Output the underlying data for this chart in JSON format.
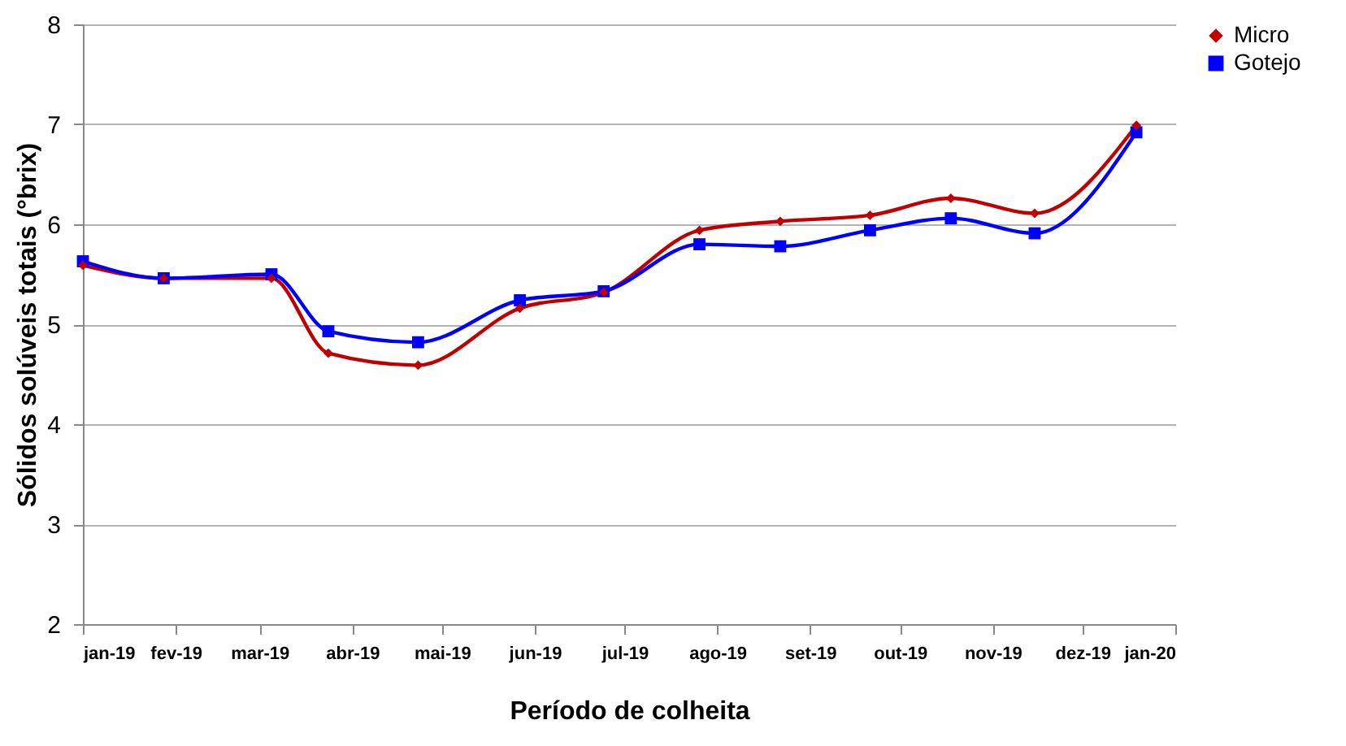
{
  "chart_data": {
    "type": "line",
    "xlabel": "Período de colheita",
    "ylabel": "Sólidos solúveis totais (°brix)",
    "x": [
      "2019-01-01",
      "2019-01-28",
      "2019-03-05",
      "2019-03-24",
      "2019-04-23",
      "2019-05-27",
      "2019-06-24",
      "2019-07-26",
      "2019-08-22",
      "2019-09-21",
      "2019-10-18",
      "2019-11-15",
      "2019-12-19"
    ],
    "series": [
      {
        "name": "Micro",
        "color": "#c00000",
        "marker": "diamond",
        "values": [
          5.59,
          5.46,
          5.46,
          4.71,
          4.59,
          5.16,
          5.32,
          5.94,
          6.03,
          6.09,
          6.26,
          6.11,
          6.99
        ]
      },
      {
        "name": "Gotejo",
        "color": "#0000ff",
        "marker": "square",
        "values": [
          5.63,
          5.46,
          5.5,
          4.93,
          4.82,
          5.24,
          5.33,
          5.8,
          5.78,
          5.94,
          6.06,
          5.91,
          6.92
        ]
      }
    ],
    "xlim": [
      "2019-01-01",
      "2020-01-01"
    ],
    "xticks": [
      {
        "value": "2019-01-01",
        "label": "jan-19"
      },
      {
        "value": "2019-02-01",
        "label": "fev-19"
      },
      {
        "value": "2019-03-01",
        "label": "mar-19"
      },
      {
        "value": "2019-04-01",
        "label": "abr-19"
      },
      {
        "value": "2019-05-01",
        "label": "mai-19"
      },
      {
        "value": "2019-06-01",
        "label": "jun-19"
      },
      {
        "value": "2019-07-01",
        "label": "jul-19"
      },
      {
        "value": "2019-08-01",
        "label": "ago-19"
      },
      {
        "value": "2019-09-01",
        "label": "set-19"
      },
      {
        "value": "2019-10-01",
        "label": "out-19"
      },
      {
        "value": "2019-11-01",
        "label": "nov-19"
      },
      {
        "value": "2019-12-01",
        "label": "dez-19"
      },
      {
        "value": "2020-01-01",
        "label": "jan-20"
      }
    ],
    "ylim": [
      2,
      8
    ],
    "yticks": [
      2,
      3,
      4,
      5,
      6,
      7,
      8
    ],
    "grid": "y",
    "legend": "right",
    "line_style": "solid"
  }
}
